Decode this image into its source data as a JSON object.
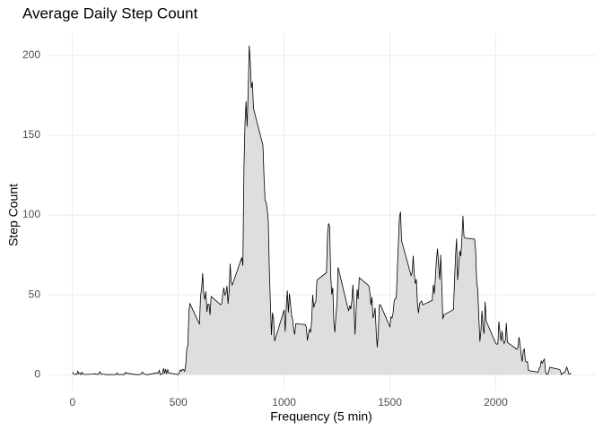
{
  "chart_data": {
    "type": "area",
    "title": "Average Daily Step Count",
    "x_label": "Frequency (5 min)",
    "y_label": "Step Count",
    "x": [
      0,
      5,
      10,
      15,
      20,
      25,
      30,
      35,
      40,
      45,
      50,
      55,
      100,
      105,
      110,
      115,
      120,
      125,
      130,
      135,
      140,
      145,
      150,
      155,
      200,
      205,
      210,
      215,
      220,
      225,
      230,
      235,
      240,
      245,
      250,
      255,
      300,
      305,
      310,
      315,
      320,
      325,
      330,
      335,
      340,
      345,
      350,
      355,
      400,
      405,
      410,
      415,
      420,
      425,
      430,
      435,
      440,
      445,
      450,
      455,
      500,
      505,
      510,
      515,
      520,
      525,
      530,
      535,
      540,
      545,
      550,
      555,
      600,
      605,
      610,
      615,
      620,
      625,
      630,
      635,
      640,
      645,
      650,
      655,
      700,
      705,
      710,
      715,
      720,
      725,
      730,
      735,
      740,
      745,
      750,
      755,
      800,
      805,
      810,
      815,
      820,
      825,
      830,
      835,
      840,
      845,
      850,
      855,
      900,
      905,
      910,
      915,
      920,
      925,
      930,
      935,
      940,
      945,
      950,
      955,
      1000,
      1005,
      1010,
      1015,
      1020,
      1025,
      1030,
      1035,
      1040,
      1045,
      1050,
      1055,
      1100,
      1105,
      1110,
      1115,
      1120,
      1125,
      1130,
      1135,
      1140,
      1145,
      1150,
      1155,
      1200,
      1205,
      1210,
      1215,
      1220,
      1225,
      1230,
      1235,
      1240,
      1245,
      1250,
      1255,
      1300,
      1305,
      1310,
      1315,
      1320,
      1325,
      1330,
      1335,
      1340,
      1345,
      1350,
      1355,
      1400,
      1405,
      1410,
      1415,
      1420,
      1425,
      1430,
      1435,
      1440,
      1445,
      1450,
      1455,
      1500,
      1505,
      1510,
      1515,
      1520,
      1525,
      1530,
      1535,
      1540,
      1545,
      1550,
      1555,
      1600,
      1605,
      1610,
      1615,
      1620,
      1625,
      1630,
      1635,
      1640,
      1645,
      1650,
      1655,
      1700,
      1705,
      1710,
      1715,
      1720,
      1725,
      1730,
      1735,
      1740,
      1745,
      1750,
      1755,
      1800,
      1805,
      1810,
      1815,
      1820,
      1825,
      1830,
      1835,
      1840,
      1845,
      1850,
      1855,
      1900,
      1905,
      1910,
      1915,
      1920,
      1925,
      1930,
      1935,
      1940,
      1945,
      1950,
      1955,
      2000,
      2005,
      2010,
      2015,
      2020,
      2025,
      2030,
      2035,
      2040,
      2045,
      2050,
      2055,
      2100,
      2105,
      2110,
      2115,
      2120,
      2125,
      2130,
      2135,
      2140,
      2145,
      2150,
      2155,
      2200,
      2205,
      2210,
      2215,
      2220,
      2225,
      2230,
      2235,
      2240,
      2245,
      2250,
      2255,
      2300,
      2305,
      2310,
      2315,
      2320,
      2325,
      2330,
      2335,
      2340,
      2345,
      2350,
      2355
    ],
    "y": [
      1.7,
      0.3,
      0.1,
      0.2,
      0.1,
      2.1,
      0.5,
      0.9,
      0,
      1.5,
      0.3,
      0.1,
      0.3,
      0.7,
      0.2,
      0.3,
      0,
      1.1,
      1.8,
      0.2,
      0.2,
      0.3,
      0.3,
      0,
      0,
      0,
      1.1,
      0,
      0,
      0.1,
      0,
      0.2,
      0,
      0,
      1.5,
      0.9,
      0,
      0,
      0,
      0,
      0.2,
      0.6,
      1.6,
      0.6,
      0.5,
      0.1,
      0,
      0,
      1.2,
      0.9,
      2.6,
      0,
      0.3,
      0.4,
      4.1,
      0.7,
      3.5,
      0.8,
      3.1,
      1.1,
      0,
      1.6,
      3,
      2.2,
      3.3,
      3,
      2.1,
      6.1,
      16,
      18.3,
      39.5,
      44.5,
      31.5,
      49.3,
      53.8,
      63.5,
      50,
      47.1,
      52.2,
      39.3,
      44,
      44.2,
      37.4,
      49,
      43.8,
      44.4,
      50.5,
      54.5,
      49.9,
      51,
      55.7,
      44.3,
      52.3,
      69.5,
      57.8,
      56.2,
      73.4,
      68.2,
      129.4,
      157.5,
      171.2,
      155.4,
      177.3,
      206.2,
      195.9,
      179.6,
      183.4,
      167,
      143.5,
      124,
      109.1,
      108.1,
      103.7,
      96,
      66.2,
      45.2,
      24.8,
      38.8,
      35,
      21,
      40.6,
      26.9,
      42.4,
      52.7,
      38.9,
      50.8,
      44.3,
      37.4,
      34.7,
      28.3,
      25.1,
      31.9,
      31.4,
      29.7,
      21.3,
      25.5,
      28.4,
      26.5,
      33.4,
      50,
      42,
      44.6,
      46,
      59.2,
      63.9,
      87.7,
      94.8,
      92.8,
      63.4,
      50.2,
      54.5,
      32.4,
      26.5,
      37.7,
      45.1,
      67.3,
      42.3,
      39.9,
      43.3,
      41,
      46.2,
      56.4,
      42.8,
      25.1,
      40,
      53.5,
      47.3,
      60.8,
      55.8,
      52,
      43.6,
      48.7,
      35.5,
      37.5,
      41.8,
      27.5,
      17.1,
      26.1,
      43.6,
      43.8,
      30,
      36.1,
      35.5,
      38.8,
      46,
      47.8,
      48.1,
      65.3,
      82.9,
      98.7,
      102.1,
      84,
      62.1,
      64.1,
      74.5,
      63.2,
      56.9,
      59.8,
      43.9,
      38.6,
      44.7,
      45.5,
      46.2,
      43.7,
      46.6,
      56.3,
      50.7,
      61.2,
      72.7,
      78.9,
      68.9,
      59.7,
      75.1,
      56.5,
      34.8,
      37.5,
      40.7,
      58,
      74.7,
      85.3,
      59.3,
      67.8,
      77.7,
      74.2,
      85.3,
      99.5,
      86.6,
      85.6,
      84.9,
      77.8,
      58,
      53.4,
      36.3,
      20.7,
      27.4,
      40,
      30.2,
      25.5,
      45.7,
      33.5,
      19.6,
      19,
      19.3,
      33.3,
      26.8,
      21.2,
      27.3,
      21.3,
      19.5,
      21.3,
      32.3,
      20.2,
      15.9,
      17.2,
      23.5,
      19.2,
      12.5,
      8.1,
      14.7,
      16.3,
      8.7,
      7.8,
      8.1,
      2.6,
      1.5,
      3.7,
      4.8,
      8.5,
      7.1,
      8.7,
      9.8,
      2.2,
      0.3,
      0.1,
      1.6,
      4.6,
      3.3,
      2.8,
      0,
      0.8,
      1,
      1.6,
      2.6,
      4.7,
      3.3,
      0.6,
      0.2,
      1.1
    ],
    "fill": "#dedede",
    "color": "#000000",
    "xlim": [
      -118,
      2473
    ],
    "ylim": [
      -10,
      214
    ],
    "xticks": [
      0,
      500,
      1000,
      1500,
      2000
    ],
    "yticks": [
      0,
      50,
      100,
      150,
      200
    ],
    "grid": true
  }
}
